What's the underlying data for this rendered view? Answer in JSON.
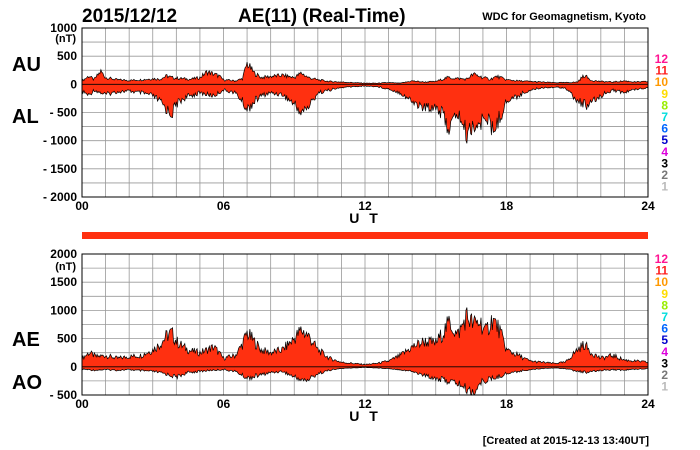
{
  "header": {
    "date": "2015/12/12",
    "title": "AE(11) (Real-Time)",
    "organization": "WDC for Geomagnetism, Kyoto"
  },
  "footer": {
    "created": "[Created at 2015-12-13 13:40UT]"
  },
  "colors": {
    "fill": "#ff3010",
    "quality_bar": "#ff3010"
  },
  "legend": {
    "items": [
      {
        "label": "12",
        "color": "#ff1493"
      },
      {
        "label": "11",
        "color": "#ff2020"
      },
      {
        "label": "10",
        "color": "#ff9900"
      },
      {
        "label": "9",
        "color": "#ffdd00"
      },
      {
        "label": "8",
        "color": "#99ee00"
      },
      {
        "label": "7",
        "color": "#00dddd"
      },
      {
        "label": "6",
        "color": "#0066ff"
      },
      {
        "label": "5",
        "color": "#0000cc"
      },
      {
        "label": "4",
        "color": "#dd00dd"
      },
      {
        "label": "3",
        "color": "#000000"
      },
      {
        "label": "2",
        "color": "#777777"
      },
      {
        "label": "1",
        "color": "#bbbbbb"
      }
    ]
  },
  "chart_data": [
    {
      "type": "area",
      "labels": {
        "upper": "AU",
        "lower": "AL"
      },
      "unit": "(nT)",
      "xlabel": "U T",
      "xlim": [
        0,
        24
      ],
      "xticks": [
        "00",
        "06",
        "12",
        "18",
        "24"
      ],
      "ylim": [
        -2000,
        1000
      ],
      "yticks": [
        1000,
        500,
        0,
        -500,
        -1000,
        -1500,
        -2000
      ],
      "ytick_labels": [
        "1000",
        "500",
        "0",
        "- 500",
        "- 1000",
        "- 1500",
        "- 2000"
      ],
      "upper_envelope": {
        "x": [
          0,
          0.3,
          0.5,
          0.8,
          1.0,
          1.5,
          2.0,
          2.5,
          3.0,
          3.3,
          3.6,
          3.8,
          4.0,
          4.3,
          4.6,
          5.0,
          5.3,
          5.6,
          5.8,
          6.0,
          6.5,
          6.8,
          7.0,
          7.3,
          7.6,
          8.0,
          8.5,
          9.0,
          9.3,
          9.6,
          10.0,
          10.5,
          11.0,
          11.5,
          12.0,
          12.5,
          13.0,
          13.5,
          14.0,
          14.5,
          15.0,
          15.5,
          16.0,
          16.3,
          16.6,
          17.0,
          17.3,
          17.6,
          18.0,
          18.5,
          19.0,
          19.5,
          20.0,
          20.5,
          21.0,
          21.3,
          21.6,
          22.0,
          22.5,
          23.0,
          23.5,
          24.0
        ],
        "y": [
          60,
          150,
          80,
          230,
          120,
          80,
          70,
          80,
          100,
          90,
          150,
          120,
          110,
          100,
          90,
          120,
          220,
          180,
          150,
          80,
          60,
          100,
          370,
          200,
          120,
          140,
          160,
          120,
          200,
          120,
          80,
          50,
          40,
          30,
          20,
          20,
          30,
          20,
          60,
          40,
          50,
          120,
          100,
          90,
          180,
          120,
          90,
          140,
          80,
          60,
          50,
          40,
          30,
          30,
          40,
          160,
          70,
          50,
          40,
          60,
          40,
          50
        ]
      },
      "lower_envelope": {
        "x": [
          0,
          0.3,
          0.5,
          0.8,
          1.0,
          1.5,
          2.0,
          2.5,
          3.0,
          3.3,
          3.6,
          3.8,
          4.0,
          4.3,
          4.6,
          5.0,
          5.3,
          5.6,
          5.8,
          6.0,
          6.5,
          6.8,
          7.0,
          7.3,
          7.6,
          8.0,
          8.5,
          9.0,
          9.3,
          9.6,
          10.0,
          10.5,
          11.0,
          11.5,
          12.0,
          12.5,
          13.0,
          13.5,
          14.0,
          14.5,
          15.0,
          15.3,
          15.6,
          15.9,
          16.1,
          16.3,
          16.6,
          16.9,
          17.1,
          17.4,
          17.7,
          18.0,
          18.5,
          19.0,
          19.5,
          20.0,
          20.5,
          21.0,
          21.5,
          22.0,
          22.5,
          23.0,
          23.5,
          24.0
        ],
        "y": [
          -120,
          -200,
          -100,
          -150,
          -180,
          -130,
          -120,
          -150,
          -200,
          -300,
          -450,
          -520,
          -350,
          -250,
          -200,
          -150,
          -180,
          -200,
          -150,
          -100,
          -150,
          -300,
          -450,
          -300,
          -200,
          -150,
          -180,
          -350,
          -500,
          -400,
          -150,
          -100,
          -60,
          -40,
          -30,
          -40,
          -80,
          -150,
          -300,
          -420,
          -380,
          -550,
          -800,
          -500,
          -650,
          -900,
          -700,
          -750,
          -500,
          -850,
          -600,
          -300,
          -200,
          -100,
          -60,
          -50,
          -60,
          -300,
          -380,
          -200,
          -100,
          -150,
          -80,
          -60
        ]
      }
    },
    {
      "type": "area",
      "labels": {
        "upper": "AE",
        "lower": "AO"
      },
      "unit": "(nT)",
      "xlabel": "U T",
      "xlim": [
        0,
        24
      ],
      "xticks": [
        "00",
        "06",
        "12",
        "18",
        "24"
      ],
      "ylim": [
        -500,
        2000
      ],
      "yticks": [
        2000,
        1500,
        1000,
        500,
        0,
        -500
      ],
      "ytick_labels": [
        "2000",
        "1500",
        "1000",
        "500",
        "0",
        "- 500"
      ],
      "upper_envelope": {
        "x": [
          0,
          0.3,
          0.6,
          1.0,
          1.5,
          2.0,
          2.5,
          3.0,
          3.3,
          3.6,
          3.8,
          4.0,
          4.3,
          4.6,
          5.0,
          5.3,
          5.6,
          5.8,
          6.0,
          6.5,
          6.8,
          7.0,
          7.3,
          7.6,
          8.0,
          8.5,
          9.0,
          9.3,
          9.6,
          10.0,
          10.5,
          11.0,
          11.5,
          12.0,
          12.5,
          13.0,
          13.5,
          14.0,
          14.5,
          15.0,
          15.3,
          15.6,
          15.9,
          16.1,
          16.3,
          16.6,
          16.9,
          17.1,
          17.4,
          17.7,
          18.0,
          18.5,
          19.0,
          19.5,
          20.0,
          20.5,
          21.0,
          21.3,
          21.6,
          22.0,
          22.5,
          23.0,
          23.5,
          24.0
        ],
        "y": [
          150,
          250,
          180,
          200,
          150,
          180,
          200,
          300,
          400,
          550,
          600,
          450,
          350,
          280,
          250,
          300,
          350,
          250,
          150,
          200,
          400,
          600,
          450,
          300,
          250,
          300,
          500,
          650,
          550,
          300,
          150,
          80,
          60,
          40,
          60,
          100,
          200,
          350,
          450,
          420,
          600,
          800,
          550,
          700,
          900,
          750,
          800,
          600,
          850,
          650,
          300,
          200,
          100,
          80,
          60,
          80,
          300,
          400,
          250,
          150,
          200,
          120,
          100,
          80
        ]
      },
      "lower_envelope": {
        "x": [
          0,
          0.5,
          1.0,
          1.5,
          2.0,
          2.5,
          3.0,
          3.5,
          4.0,
          4.5,
          5.0,
          5.5,
          6.0,
          6.5,
          7.0,
          7.5,
          8.0,
          8.5,
          9.0,
          9.5,
          10.0,
          10.5,
          11.0,
          11.5,
          12.0,
          12.5,
          13.0,
          13.5,
          14.0,
          14.5,
          15.0,
          15.5,
          16.0,
          16.3,
          16.6,
          17.0,
          17.5,
          18.0,
          18.5,
          19.0,
          19.5,
          20.0,
          20.5,
          21.0,
          21.5,
          22.0,
          22.5,
          23.0,
          23.5,
          24.0
        ],
        "y": [
          -40,
          -60,
          -50,
          -60,
          -50,
          -70,
          -80,
          -120,
          -180,
          -100,
          -80,
          -60,
          -50,
          -80,
          -200,
          -150,
          -100,
          -80,
          -180,
          -250,
          -120,
          -60,
          -30,
          -20,
          -10,
          -20,
          -30,
          -50,
          -80,
          -150,
          -200,
          -250,
          -300,
          -400,
          -450,
          -250,
          -200,
          -120,
          -80,
          -50,
          -30,
          -20,
          -30,
          -80,
          -100,
          -60,
          -50,
          -60,
          -40,
          -30
        ]
      }
    }
  ]
}
